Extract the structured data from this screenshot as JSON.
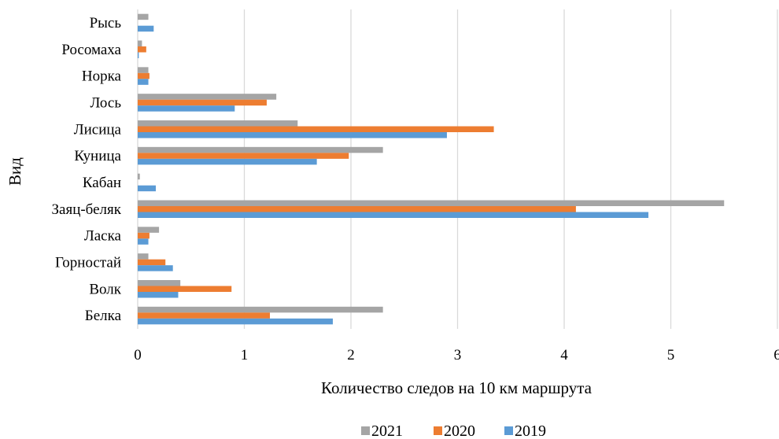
{
  "chart_data": {
    "type": "bar",
    "orientation": "horizontal",
    "title": "",
    "xlabel": "Количество следов  на 10 км маршрута",
    "ylabel": "Вид",
    "xlim": [
      0,
      6
    ],
    "x_ticks": [
      "0",
      "1",
      "2",
      "3",
      "4",
      "5",
      "6"
    ],
    "grid": true,
    "legend_position": "bottom",
    "categories": [
      "Рысь",
      "Росомаха",
      "Норка",
      "Лось",
      "Лисица",
      "Куница",
      "Кабан",
      "Заяц-беляк",
      "Ласка",
      "Горностай",
      "Волк",
      "Белка"
    ],
    "series": [
      {
        "name": "2021",
        "color": "#a5a5a5",
        "values": [
          0.1,
          0.04,
          0.1,
          1.3,
          1.5,
          2.3,
          0.02,
          5.5,
          0.2,
          0.1,
          0.4,
          2.3
        ]
      },
      {
        "name": "2020",
        "color": "#ed7d31",
        "values": [
          0.0,
          0.08,
          0.11,
          1.21,
          3.34,
          1.98,
          0.0,
          4.11,
          0.11,
          0.26,
          0.88,
          1.24
        ]
      },
      {
        "name": "2019",
        "color": "#5b9bd5",
        "values": [
          0.15,
          0.01,
          0.1,
          0.91,
          2.9,
          1.68,
          0.17,
          4.79,
          0.1,
          0.33,
          0.38,
          1.83
        ]
      }
    ]
  }
}
